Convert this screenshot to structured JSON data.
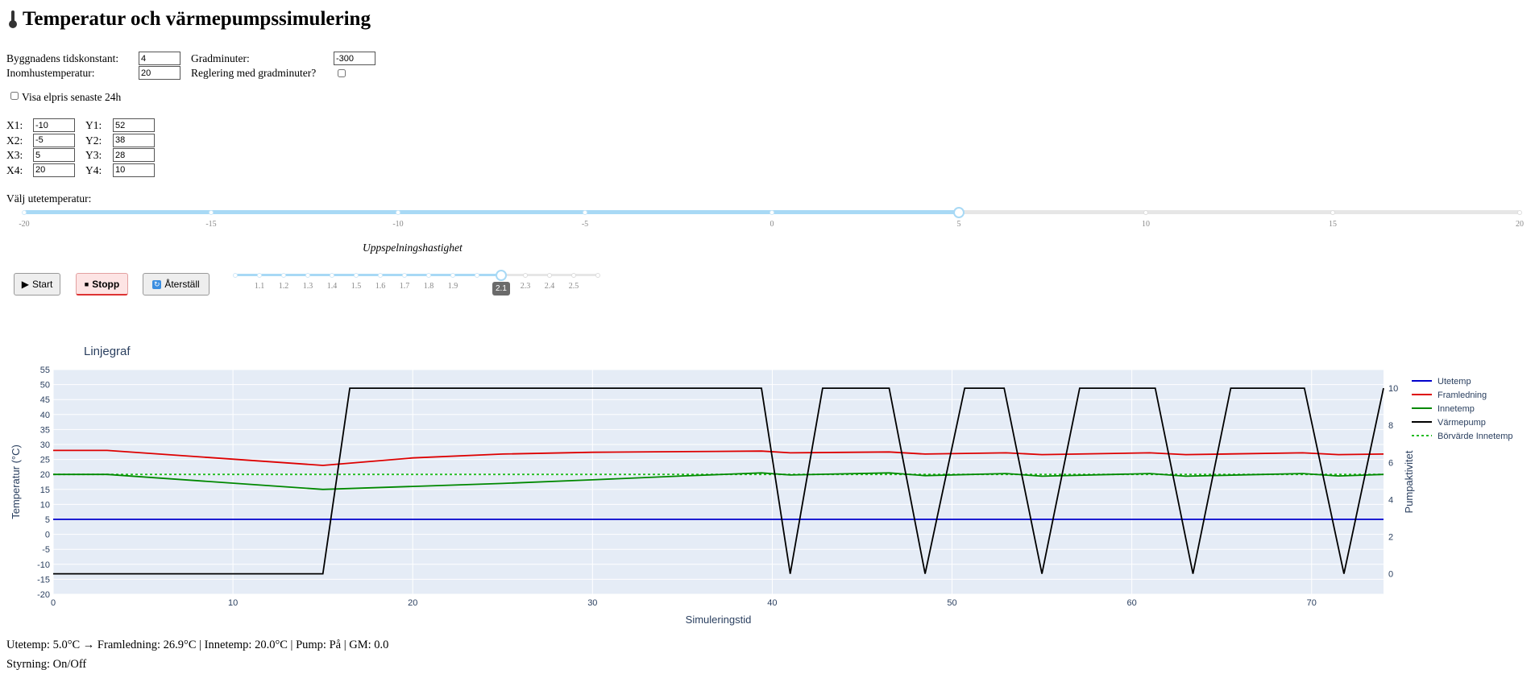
{
  "title": "Temperatur och värmepumpssimulering",
  "settings": {
    "time_constant_label": "Byggnadens tidskonstant:",
    "time_constant_value": "4",
    "indoor_temp_label": "Inomhustemperatur:",
    "indoor_temp_value": "20",
    "degree_minutes_label": "Gradminuter:",
    "degree_minutes_value": "-300",
    "regulation_label": "Reglering med gradminuter?",
    "regulation_checked": false,
    "show_price_label": "Visa elpris senaste 24h",
    "show_price_checked": false
  },
  "curve": {
    "points": [
      {
        "x_label": "X1:",
        "x_value": "-10",
        "y_label": "Y1:",
        "y_value": "52"
      },
      {
        "x_label": "X2:",
        "x_value": "-5",
        "y_label": "Y2:",
        "y_value": "38"
      },
      {
        "x_label": "X3:",
        "x_value": "5",
        "y_label": "Y3:",
        "y_value": "28"
      },
      {
        "x_label": "X4:",
        "x_value": "20",
        "y_label": "Y4:",
        "y_value": "10"
      }
    ]
  },
  "outdoor_slider": {
    "label": "Välj utetemperatur:",
    "ticks": [
      "-20",
      "-15",
      "-10",
      "-5",
      "0",
      "5",
      "10",
      "15",
      "20"
    ],
    "min": -20,
    "max": 20,
    "value": 5
  },
  "playback": {
    "label": "Uppspelningshastighet",
    "start_label": "Start",
    "stop_label": "Stopp",
    "reset_label": "Återställ",
    "tick_labels": [
      "1.1",
      "1.2",
      "1.3",
      "1.4",
      "1.5",
      "1.6",
      "1.7",
      "1.8",
      "1.9",
      "",
      "2.2",
      "2.3",
      "2.4",
      "2.5"
    ],
    "min": 1.0,
    "max": 2.5,
    "value": 2.1,
    "value_label": "2.1"
  },
  "chart_data": {
    "type": "line",
    "title": "Linjegraf",
    "xlabel": "Simuleringstid",
    "ylabel": "Temperatur (°C)",
    "y2label": "Pumpaktivitet",
    "xlim": [
      0,
      74
    ],
    "ylim": [
      -20,
      55
    ],
    "y2lim": [
      -1.1,
      11
    ],
    "xticks": [
      0,
      10,
      20,
      30,
      40,
      50,
      60,
      70
    ],
    "yticks": [
      -20,
      -15,
      -10,
      -5,
      0,
      5,
      10,
      15,
      20,
      25,
      30,
      35,
      40,
      45,
      50,
      55
    ],
    "y2ticks": [
      0,
      2,
      4,
      6,
      8,
      10
    ],
    "grid": true,
    "legend_position": "right",
    "series": [
      {
        "name": "Utetemp",
        "color": "#0000cc",
        "axis": "y",
        "dash": false,
        "points": [
          [
            0,
            5
          ],
          [
            74,
            5
          ]
        ]
      },
      {
        "name": "Framledning",
        "color": "#dd0000",
        "axis": "y",
        "dash": false,
        "points": [
          [
            0,
            28
          ],
          [
            3,
            28
          ],
          [
            15,
            23
          ],
          [
            20,
            25.5
          ],
          [
            25,
            26.8
          ],
          [
            30,
            27.4
          ],
          [
            35,
            27.6
          ],
          [
            39.4,
            27.8
          ],
          [
            41,
            27.2
          ],
          [
            46.5,
            27.5
          ],
          [
            48.5,
            26.8
          ],
          [
            53,
            27.2
          ],
          [
            55,
            26.6
          ],
          [
            61,
            27.2
          ],
          [
            63,
            26.6
          ],
          [
            69.5,
            27.2
          ],
          [
            71.5,
            26.6
          ],
          [
            74,
            26.8
          ]
        ]
      },
      {
        "name": "Innetemp",
        "color": "#008800",
        "axis": "y",
        "dash": false,
        "points": [
          [
            0,
            20
          ],
          [
            3,
            20
          ],
          [
            15,
            15
          ],
          [
            20,
            16
          ],
          [
            25,
            17
          ],
          [
            30,
            18.2
          ],
          [
            35,
            19.5
          ],
          [
            39.4,
            20.5
          ],
          [
            41,
            19.8
          ],
          [
            46.5,
            20.5
          ],
          [
            48.5,
            19.6
          ],
          [
            53,
            20.3
          ],
          [
            55,
            19.4
          ],
          [
            61,
            20.3
          ],
          [
            63,
            19.4
          ],
          [
            69.5,
            20.3
          ],
          [
            71.5,
            19.5
          ],
          [
            74,
            20
          ]
        ]
      },
      {
        "name": "Värmepump",
        "color": "#000000",
        "axis": "y2",
        "dash": false,
        "points": [
          [
            0,
            0
          ],
          [
            15,
            0
          ],
          [
            16.5,
            10
          ],
          [
            39.4,
            10
          ],
          [
            41,
            0
          ],
          [
            42.8,
            10
          ],
          [
            46.5,
            10
          ],
          [
            48.5,
            0
          ],
          [
            50.7,
            10
          ],
          [
            52.9,
            10
          ],
          [
            55,
            0
          ],
          [
            57.1,
            10
          ],
          [
            61.3,
            10
          ],
          [
            63.4,
            0
          ],
          [
            65.5,
            10
          ],
          [
            69.6,
            10
          ],
          [
            71.8,
            0
          ],
          [
            74,
            10
          ]
        ]
      },
      {
        "name": "Börvärde Innetemp",
        "color": "#22bb22",
        "axis": "y",
        "dash": true,
        "points": [
          [
            0,
            20
          ],
          [
            74,
            20
          ]
        ]
      }
    ]
  },
  "status": {
    "line1": "Utetemp: 5.0°C → Framledning: 26.9°C | Innetemp: 20.0°C | Pump: På | GM: 0.0",
    "line2": "Styrning: On/Off"
  }
}
